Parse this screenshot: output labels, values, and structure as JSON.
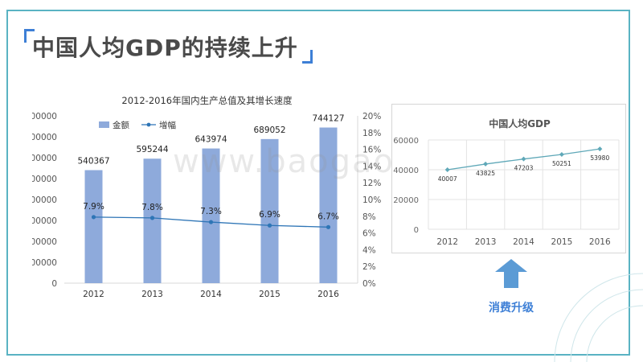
{
  "page": {
    "title": "中国人均GDP的持续上升",
    "upgrade_label": "消费升级",
    "watermark": "www.baogao8.com"
  },
  "colors": {
    "frame": "#5ab3c3",
    "accent": "#3d7fd6",
    "bar": "#8eaadb",
    "line": "#2e75b6",
    "right_line": "#5fa8b8",
    "arrow": "#5b9bd5"
  },
  "chart_data": [
    {
      "type": "bar",
      "title": "2012-2016年国内生产总值及其增长速度",
      "categories": [
        "2012",
        "2013",
        "2014",
        "2015",
        "2016"
      ],
      "series": [
        {
          "name": "金额",
          "type": "bar",
          "axis": "left",
          "values": [
            540367,
            595244,
            643974,
            689052,
            744127
          ],
          "labels": [
            "540367",
            "595244",
            "643974",
            "689052",
            "744127"
          ]
        },
        {
          "name": "增幅",
          "type": "line",
          "axis": "right",
          "values": [
            7.9,
            7.8,
            7.3,
            6.9,
            6.7
          ],
          "labels": [
            "7.9%",
            "7.8%",
            "7.3%",
            "6.9%",
            "6.7%"
          ]
        }
      ],
      "ylim": [
        0,
        800000
      ],
      "yticks": [
        "0",
        "100000",
        "200000",
        "300000",
        "400000",
        "500000",
        "600000",
        "700000",
        "800000"
      ],
      "y2lim": [
        0,
        20
      ],
      "y2ticks": [
        "0%",
        "2%",
        "4%",
        "6%",
        "8%",
        "10%",
        "12%",
        "14%",
        "16%",
        "18%",
        "20%"
      ],
      "legend": "top-left",
      "grid": false
    },
    {
      "type": "line",
      "title": "中国人均GDP",
      "categories": [
        "2012",
        "2013",
        "2014",
        "2015",
        "2016"
      ],
      "series": [
        {
          "values": [
            40007,
            43825,
            47203,
            50251,
            53980
          ],
          "labels": [
            "40007",
            "43825",
            "47203",
            "50251",
            "53980"
          ]
        }
      ],
      "ylim": [
        0,
        60000
      ],
      "yticks": [
        "0",
        "20000",
        "40000",
        "60000"
      ],
      "grid": true
    }
  ]
}
